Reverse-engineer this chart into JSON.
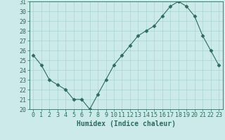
{
  "x": [
    0,
    1,
    2,
    3,
    4,
    5,
    6,
    7,
    8,
    9,
    10,
    11,
    12,
    13,
    14,
    15,
    16,
    17,
    18,
    19,
    20,
    21,
    22,
    23
  ],
  "y": [
    25.5,
    24.5,
    23.0,
    22.5,
    22.0,
    21.0,
    21.0,
    20.0,
    21.5,
    23.0,
    24.5,
    25.5,
    26.5,
    27.5,
    28.0,
    28.5,
    29.5,
    30.5,
    31.0,
    30.5,
    29.5,
    27.5,
    26.0,
    24.5
  ],
  "xlabel": "Humidex (Indice chaleur)",
  "ylim": [
    20,
    31
  ],
  "xlim": [
    -0.5,
    23.5
  ],
  "yticks": [
    20,
    21,
    22,
    23,
    24,
    25,
    26,
    27,
    28,
    29,
    30,
    31
  ],
  "xticks": [
    0,
    1,
    2,
    3,
    4,
    5,
    6,
    7,
    8,
    9,
    10,
    11,
    12,
    13,
    14,
    15,
    16,
    17,
    18,
    19,
    20,
    21,
    22,
    23
  ],
  "line_color": "#2e6b5e",
  "marker": "D",
  "marker_size": 2.5,
  "background_color": "#cceaea",
  "grid_color": "#aad4d4",
  "axis_color": "#2e6b5e",
  "tick_label_color": "#2e6b5e",
  "xlabel_color": "#2e6b5e",
  "xlabel_fontsize": 7,
  "tick_fontsize": 6
}
